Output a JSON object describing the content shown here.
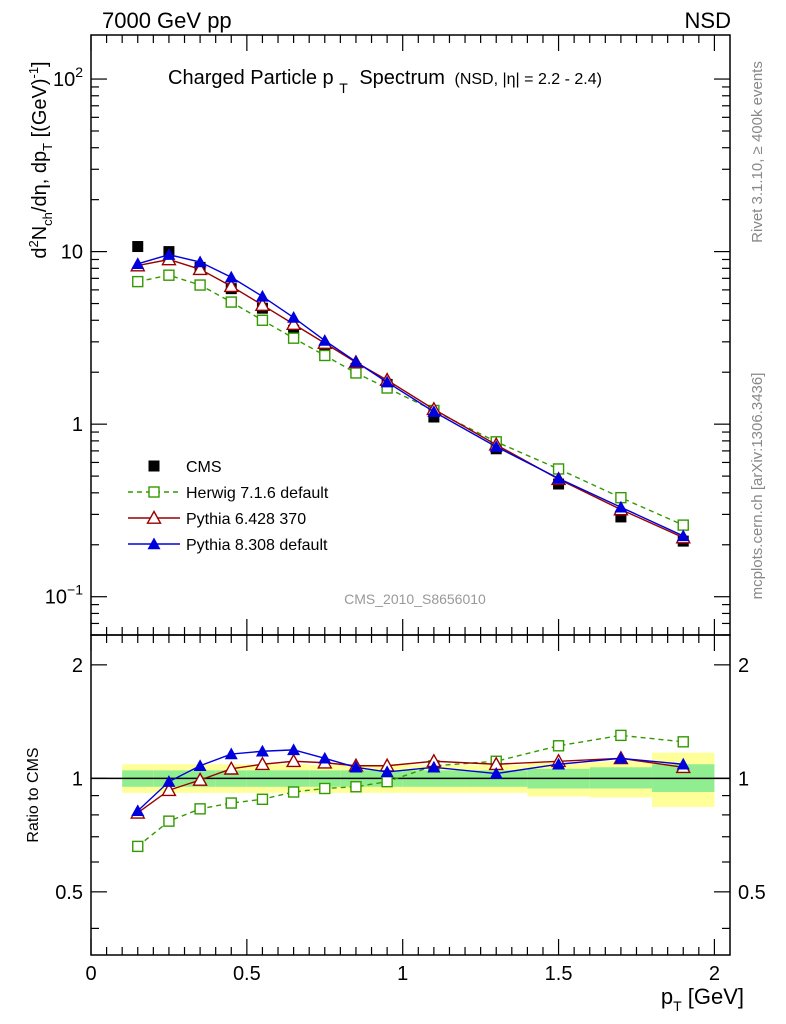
{
  "header": {
    "left": "7000 GeV pp",
    "right": "NSD"
  },
  "side_labels": {
    "rivet": "Rivet 3.1.10, ≥ 400k events",
    "mcplots": "mcplots.cern.ch [arXiv:1306.3436]"
  },
  "chart_data": [
    {
      "type": "scatter",
      "title_main": "Charged Particle p",
      "title_sub": "T",
      "title_main2": "Spectrum",
      "title_extra": "(NSD, |η| = 2.2 - 2.4)",
      "ylabel": "d²N_ch/dη, dp_T [(GeV)⁻¹]",
      "xlabel": "p_T [GeV]",
      "xlim": [
        0,
        2.05
      ],
      "ylim": [
        0.06,
        180
      ],
      "yscale": "log",
      "yticks": [
        "10⁻¹",
        "1",
        "10",
        "10²"
      ],
      "watermark": "CMS_2010_S8656010",
      "legend_position": "center-left",
      "series": [
        {
          "name": "CMS",
          "marker": "filled-square",
          "color": "#000000",
          "x": [
            0.15,
            0.25,
            0.35,
            0.45,
            0.55,
            0.65,
            0.75,
            0.85,
            0.95,
            1.1,
            1.3,
            1.5,
            1.7,
            1.9
          ],
          "y": [
            10.7,
            10.0,
            8.1,
            6.1,
            4.7,
            3.5,
            2.7,
            2.1,
            1.7,
            1.1,
            0.72,
            0.45,
            0.29,
            0.21
          ]
        },
        {
          "name": "Herwig 7.1.6 default",
          "marker": "open-square",
          "line": "dashed",
          "color": "#339900",
          "x": [
            0.15,
            0.25,
            0.35,
            0.45,
            0.55,
            0.65,
            0.75,
            0.85,
            0.95,
            1.1,
            1.3,
            1.5,
            1.7,
            1.9
          ],
          "y": [
            6.7,
            7.3,
            6.4,
            5.1,
            4.0,
            3.15,
            2.5,
            1.98,
            1.62,
            1.2,
            0.79,
            0.55,
            0.375,
            0.26
          ]
        },
        {
          "name": "Pythia 6.428 370",
          "marker": "open-triangle",
          "line": "solid",
          "color": "#990000",
          "x": [
            0.15,
            0.25,
            0.35,
            0.45,
            0.55,
            0.65,
            0.75,
            0.85,
            0.95,
            1.1,
            1.3,
            1.5,
            1.7,
            1.9
          ],
          "y": [
            8.3,
            9.0,
            7.9,
            6.3,
            4.9,
            3.8,
            2.95,
            2.28,
            1.8,
            1.22,
            0.76,
            0.48,
            0.32,
            0.22
          ]
        },
        {
          "name": "Pythia 8.308 default",
          "marker": "filled-triangle",
          "line": "solid",
          "color": "#0000dd",
          "x": [
            0.15,
            0.25,
            0.35,
            0.45,
            0.55,
            0.65,
            0.75,
            0.85,
            0.95,
            1.1,
            1.3,
            1.5,
            1.7,
            1.9
          ],
          "y": [
            8.5,
            9.6,
            8.7,
            7.1,
            5.5,
            4.15,
            3.05,
            2.3,
            1.75,
            1.18,
            0.74,
            0.485,
            0.33,
            0.225
          ]
        }
      ]
    },
    {
      "type": "line",
      "ylabel": "Ratio to CMS",
      "xlabel": "p_T [GeV]",
      "xlim": [
        0,
        2.05
      ],
      "ylim": [
        0.34,
        2.4
      ],
      "yscale": "log",
      "yticks": [
        0.5,
        1,
        2
      ],
      "xticks": [
        0,
        0.5,
        1,
        1.5,
        2
      ],
      "ytick_labels": [
        "0.5",
        "1",
        "2"
      ],
      "xtick_labels": [
        "0",
        "0.5",
        "1",
        "1.5",
        "2"
      ],
      "reference_line": 1,
      "bands": {
        "bins": [
          [
            0.1,
            0.2
          ],
          [
            0.2,
            0.3
          ],
          [
            0.3,
            0.4
          ],
          [
            0.4,
            0.5
          ],
          [
            0.5,
            0.6
          ],
          [
            0.6,
            0.7
          ],
          [
            0.7,
            0.8
          ],
          [
            0.8,
            0.9
          ],
          [
            0.9,
            1.0
          ],
          [
            1.0,
            1.2
          ],
          [
            1.2,
            1.4
          ],
          [
            1.4,
            1.6
          ],
          [
            1.6,
            1.8
          ],
          [
            1.8,
            2.0
          ]
        ],
        "green": [
          [
            0.95,
            1.05
          ],
          [
            0.95,
            1.05
          ],
          [
            0.95,
            1.05
          ],
          [
            0.95,
            1.05
          ],
          [
            0.95,
            1.05
          ],
          [
            0.95,
            1.05
          ],
          [
            0.95,
            1.05
          ],
          [
            0.95,
            1.05
          ],
          [
            0.95,
            1.05
          ],
          [
            0.95,
            1.05
          ],
          [
            0.95,
            1.05
          ],
          [
            0.94,
            1.06
          ],
          [
            0.94,
            1.07
          ],
          [
            0.92,
            1.09
          ]
        ],
        "yellow": [
          [
            0.915,
            1.09
          ],
          [
            0.915,
            1.09
          ],
          [
            0.915,
            1.09
          ],
          [
            0.915,
            1.09
          ],
          [
            0.915,
            1.09
          ],
          [
            0.915,
            1.09
          ],
          [
            0.915,
            1.085
          ],
          [
            0.915,
            1.085
          ],
          [
            0.915,
            1.085
          ],
          [
            0.915,
            1.085
          ],
          [
            0.915,
            1.085
          ],
          [
            0.895,
            1.1
          ],
          [
            0.89,
            1.11
          ],
          [
            0.84,
            1.17
          ]
        ],
        "green_color": "#90ee90",
        "yellow_color": "#ffff99"
      },
      "series": [
        {
          "name": "Herwig 7.1.6 default",
          "marker": "open-square",
          "line": "dashed",
          "color": "#339900",
          "x": [
            0.15,
            0.25,
            0.35,
            0.45,
            0.55,
            0.65,
            0.75,
            0.85,
            0.95,
            1.1,
            1.3,
            1.5,
            1.7,
            1.9
          ],
          "y": [
            0.66,
            0.77,
            0.83,
            0.86,
            0.88,
            0.92,
            0.94,
            0.95,
            0.98,
            1.08,
            1.11,
            1.22,
            1.3,
            1.25
          ]
        },
        {
          "name": "Pythia 6.428 370",
          "marker": "open-triangle",
          "line": "solid",
          "color": "#990000",
          "x": [
            0.15,
            0.25,
            0.35,
            0.45,
            0.55,
            0.65,
            0.75,
            0.85,
            0.95,
            1.1,
            1.3,
            1.5,
            1.7,
            1.9
          ],
          "y": [
            0.81,
            0.93,
            0.99,
            1.06,
            1.09,
            1.11,
            1.1,
            1.08,
            1.08,
            1.11,
            1.09,
            1.11,
            1.13,
            1.07
          ]
        },
        {
          "name": "Pythia 8.308 default",
          "marker": "filled-triangle",
          "line": "solid",
          "color": "#0000dd",
          "x": [
            0.15,
            0.25,
            0.35,
            0.45,
            0.55,
            0.65,
            0.75,
            0.85,
            0.95,
            1.1,
            1.3,
            1.5,
            1.7,
            1.9
          ],
          "y": [
            0.82,
            0.98,
            1.08,
            1.16,
            1.18,
            1.19,
            1.13,
            1.07,
            1.04,
            1.07,
            1.03,
            1.09,
            1.13,
            1.09
          ]
        }
      ]
    }
  ]
}
